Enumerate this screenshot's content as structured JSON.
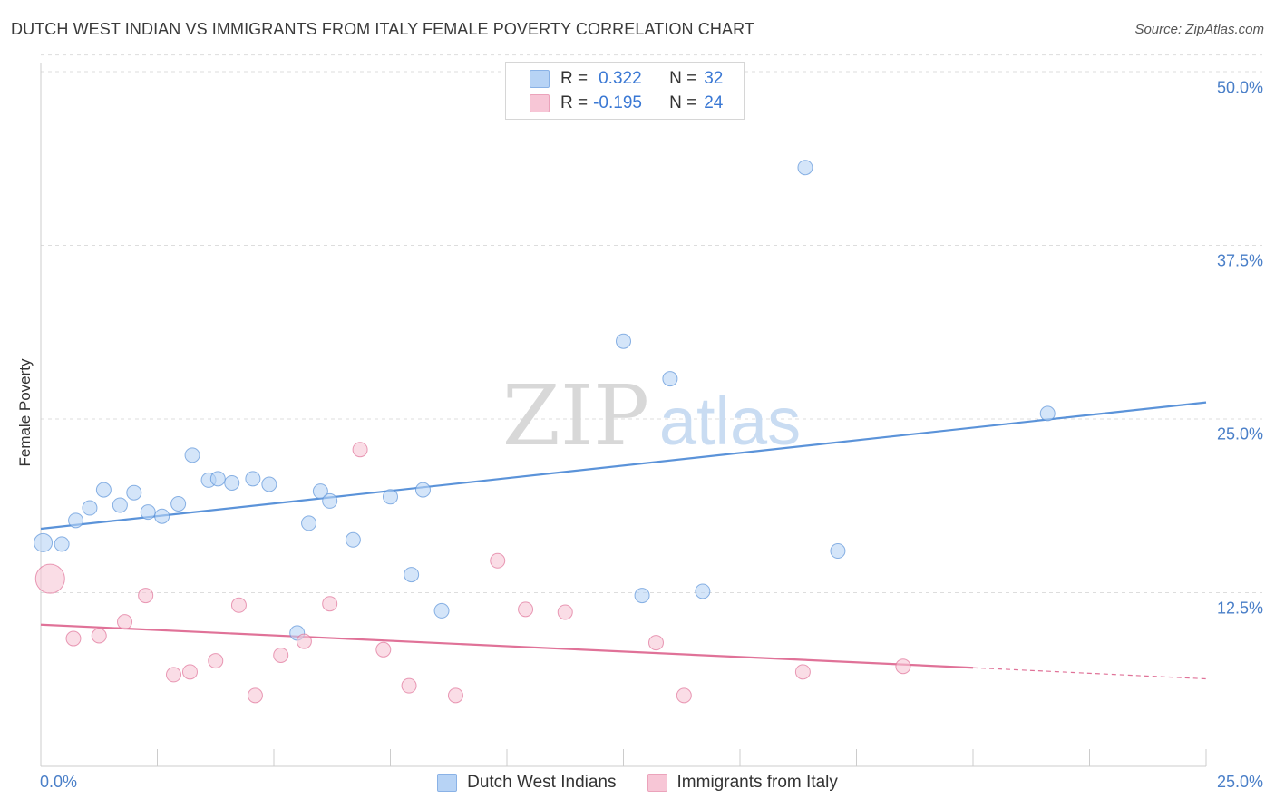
{
  "header": {
    "title": "DUTCH WEST INDIAN VS IMMIGRANTS FROM ITALY FEMALE POVERTY CORRELATION CHART",
    "source": "Source: ZipAtlas.com"
  },
  "watermark": {
    "zip": "ZIP",
    "atlas": "atlas"
  },
  "legend": {
    "rows": [
      {
        "r_label": "R =",
        "r_value": "0.322",
        "n_label": "N =",
        "n_value": "32",
        "color": "#b7d3f5"
      },
      {
        "r_label": "R =",
        "r_value": "-0.195",
        "n_label": "N =",
        "n_value": "24",
        "color": "#f7c6d6"
      }
    ]
  },
  "bottom_legend": {
    "series1": "Dutch West Indians",
    "series2": "Immigrants from Italy"
  },
  "chart_data": {
    "type": "scatter",
    "title": "DUTCH WEST INDIAN VS IMMIGRANTS FROM ITALY FEMALE POVERTY CORRELATION CHART",
    "xlabel": "",
    "ylabel": "Female Poverty",
    "xlim": [
      0,
      25
    ],
    "ylim": [
      0,
      52
    ],
    "x_tick_labels": [
      "0.0%",
      "25.0%"
    ],
    "y_tick_labels": [
      "12.5%",
      "25.0%",
      "37.5%",
      "50.0%"
    ],
    "y_ticks": [
      12.5,
      25,
      37.5,
      50
    ],
    "grid": "horizontal dashed",
    "legend_position": "top-center",
    "series": [
      {
        "name": "Dutch West Indians",
        "color": "#5b93d9",
        "fill": "#b7d3f5",
        "r": 0.322,
        "n": 32,
        "trend": {
          "x": [
            0,
            25
          ],
          "y": [
            17.1,
            26.2
          ]
        },
        "points": [
          [
            0.05,
            16.1
          ],
          [
            0.45,
            16.0
          ],
          [
            0.75,
            17.7
          ],
          [
            1.05,
            18.6
          ],
          [
            1.35,
            19.9
          ],
          [
            1.7,
            18.8
          ],
          [
            2.0,
            19.7
          ],
          [
            2.3,
            18.3
          ],
          [
            2.6,
            18.0
          ],
          [
            2.95,
            18.9
          ],
          [
            3.25,
            22.4
          ],
          [
            3.6,
            20.6
          ],
          [
            3.8,
            20.7
          ],
          [
            4.1,
            20.4
          ],
          [
            4.55,
            20.7
          ],
          [
            4.9,
            20.3
          ],
          [
            5.5,
            9.6
          ],
          [
            5.75,
            17.5
          ],
          [
            6.0,
            19.8
          ],
          [
            6.2,
            19.1
          ],
          [
            6.7,
            16.3
          ],
          [
            7.5,
            19.4
          ],
          [
            7.95,
            13.8
          ],
          [
            8.2,
            19.9
          ],
          [
            8.6,
            11.2
          ],
          [
            12.5,
            30.6
          ],
          [
            12.9,
            12.3
          ],
          [
            13.5,
            27.9
          ],
          [
            14.2,
            12.6
          ],
          [
            16.4,
            43.1
          ],
          [
            17.1,
            15.5
          ],
          [
            21.6,
            25.4
          ]
        ]
      },
      {
        "name": "Immigrants from Italy",
        "color": "#e07298",
        "fill": "#f7c6d6",
        "r": -0.195,
        "n": 24,
        "trend": {
          "x": [
            0,
            20
          ],
          "y": [
            10.2,
            7.1
          ]
        },
        "trend_dashed": {
          "x": [
            20,
            25
          ],
          "y": [
            7.1,
            6.3
          ]
        },
        "points": [
          [
            0.2,
            13.5
          ],
          [
            0.7,
            9.2
          ],
          [
            1.25,
            9.4
          ],
          [
            1.8,
            10.4
          ],
          [
            2.25,
            12.3
          ],
          [
            2.85,
            6.6
          ],
          [
            3.2,
            6.8
          ],
          [
            3.75,
            7.6
          ],
          [
            4.25,
            11.6
          ],
          [
            4.6,
            5.1
          ],
          [
            5.15,
            8.0
          ],
          [
            5.65,
            9.0
          ],
          [
            6.2,
            11.7
          ],
          [
            6.85,
            22.8
          ],
          [
            7.35,
            8.4
          ],
          [
            7.9,
            5.8
          ],
          [
            8.9,
            5.1
          ],
          [
            9.8,
            14.8
          ],
          [
            10.4,
            11.3
          ],
          [
            11.25,
            11.1
          ],
          [
            13.2,
            8.9
          ],
          [
            13.8,
            5.1
          ],
          [
            16.35,
            6.8
          ],
          [
            18.5,
            7.2
          ]
        ]
      }
    ]
  }
}
